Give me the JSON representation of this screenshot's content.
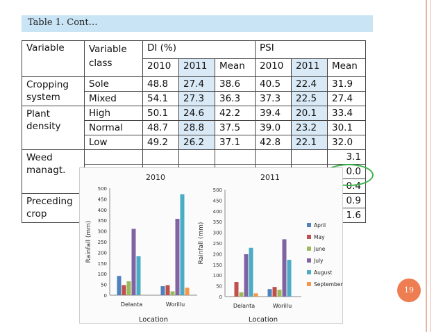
{
  "caption": "Table 1. Cont…",
  "page_number": "19",
  "table": {
    "header": {
      "variable": "Variable",
      "variable_class": "Variable class",
      "di": "DI (%)",
      "psi": "PSI"
    },
    "subheaders": [
      "2010",
      "2011",
      "Mean",
      "2010",
      "2011",
      "Mean"
    ],
    "groups": [
      {
        "name": "Cropping system",
        "rows": [
          {
            "class": "Sole",
            "values": [
              "48.8",
              "27.4",
              "38.6",
              "40.5",
              "22.4",
              "31.9"
            ]
          },
          {
            "class": "Mixed",
            "values": [
              "54.1",
              "27.3",
              "36.3",
              "37.3",
              "22.5",
              "27.4"
            ]
          }
        ]
      },
      {
        "name": "Plant density",
        "rows": [
          {
            "class": "High",
            "values": [
              "50.1",
              "24.6",
              "42.2",
              "39.4",
              "20.1",
              "33.4"
            ]
          },
          {
            "class": "Normal",
            "values": [
              "48.7",
              "28.8",
              "37.5",
              "39.0",
              "23.2",
              "30.1"
            ]
          },
          {
            "class": "Low",
            "values": [
              "49.2",
              "26.2",
              "37.1",
              "42.8",
              "22.1",
              "32.0"
            ]
          }
        ]
      },
      {
        "name": "Weed managt.",
        "rows": [
          {
            "class": "",
            "values": [
              "",
              "",
              "",
              "",
              "",
              "3.1"
            ]
          },
          {
            "class": "",
            "values": [
              "",
              "",
              "",
              "",
              "",
              "0.0"
            ]
          },
          {
            "class": "",
            "values": [
              "",
              "",
              "",
              "",
              "",
              "0.4"
            ]
          }
        ]
      },
      {
        "name": "Preceding crop",
        "rows": [
          {
            "class": "",
            "values": [
              "",
              "",
              "",
              "",
              "",
              "0.9"
            ]
          },
          {
            "class": "",
            "values": [
              "",
              "",
              "",
              "",
              "",
              "1.6"
            ]
          }
        ]
      }
    ]
  },
  "colors": {
    "caption_bg": "#c9e4f4",
    "highlight_bg": "#d9eaf6",
    "ellipse": "#3cb44b",
    "badge": "#ef7d52",
    "months": {
      "April": "#4f81bd",
      "May": "#c0504d",
      "June": "#9bbb59",
      "July": "#8064a2",
      "August": "#4bacc6",
      "September": "#f79646"
    }
  },
  "chart_data": [
    {
      "type": "bar",
      "title": "2010",
      "xlabel": "Location",
      "ylabel": "Rainfall (mm)",
      "ylim": [
        0,
        500
      ],
      "yticks": [
        "0",
        "50",
        "100",
        "150",
        "200",
        "250",
        "300",
        "350",
        "400",
        "450",
        "500"
      ],
      "categories": [
        "Delanta",
        "Worillu"
      ],
      "series": [
        {
          "name": "April",
          "values": [
            90,
            42
          ]
        },
        {
          "name": "May",
          "values": [
            47,
            47
          ]
        },
        {
          "name": "June",
          "values": [
            65,
            18
          ]
        },
        {
          "name": "July",
          "values": [
            310,
            357
          ]
        },
        {
          "name": "August",
          "values": [
            182,
            472
          ]
        },
        {
          "name": "September",
          "values": [
            2,
            35
          ]
        }
      ]
    },
    {
      "type": "bar",
      "title": "2011",
      "xlabel": "Location",
      "ylabel": "Rainfall (mm)",
      "ylim": [
        0,
        500
      ],
      "yticks": [
        "0",
        "50",
        "100",
        "150",
        "200",
        "250",
        "300",
        "350",
        "400",
        "450",
        "500"
      ],
      "categories": [
        "Delanta",
        "Worillu"
      ],
      "series": [
        {
          "name": "April",
          "values": [
            0,
            35
          ]
        },
        {
          "name": "May",
          "values": [
            68,
            45
          ]
        },
        {
          "name": "June",
          "values": [
            20,
            32
          ]
        },
        {
          "name": "July",
          "values": [
            198,
            268
          ]
        },
        {
          "name": "August",
          "values": [
            228,
            172
          ]
        },
        {
          "name": "September",
          "values": [
            15,
            0
          ]
        }
      ]
    }
  ]
}
